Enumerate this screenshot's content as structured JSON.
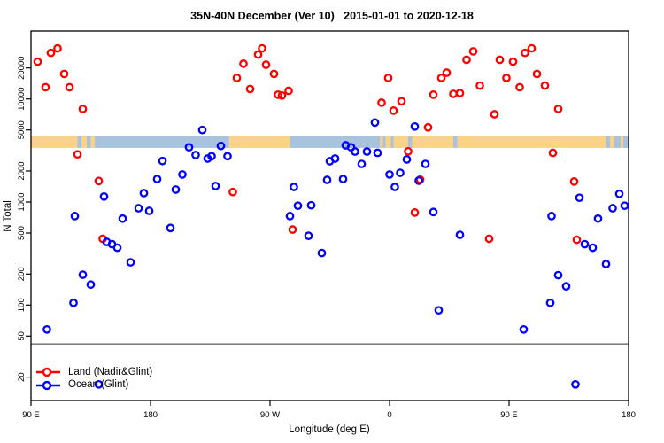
{
  "chart_data": {
    "type": "scatter",
    "title": "35N-40N December (Ver 10)   2015-01-01 to 2020-12-18",
    "xlabel": "Longitude (deg E)",
    "ylabel": "N Total",
    "x_axis": {
      "note": "longitude axis wraps eastward from 90E through 180, 90W, 0, back to 180",
      "range_deg": [
        90,
        540
      ],
      "ticks": [
        {
          "value": 90,
          "label": "90 E"
        },
        {
          "value": 180,
          "label": "180"
        },
        {
          "value": 270,
          "label": "90 W"
        },
        {
          "value": 360,
          "label": "0"
        },
        {
          "value": 450,
          "label": "90 E"
        },
        {
          "value": 540,
          "label": "180"
        }
      ]
    },
    "y_axis": {
      "scale": "log",
      "range": [
        12,
        45000
      ],
      "ticks": [
        20,
        50,
        100,
        200,
        500,
        1000,
        2000,
        5000,
        10000,
        20000
      ]
    },
    "threshold_line_n": 42,
    "map_strip": {
      "n_range": [
        3350,
        4330
      ],
      "land_color": "#fad387",
      "ocean_color": "#a9c3df",
      "segments": [
        [
          90,
          125,
          "land"
        ],
        [
          125,
          128,
          "ocean"
        ],
        [
          128,
          132,
          "land"
        ],
        [
          132,
          135,
          "ocean"
        ],
        [
          135,
          138,
          "land"
        ],
        [
          138,
          239,
          "ocean"
        ],
        [
          239,
          285,
          "land"
        ],
        [
          285,
          353,
          "ocean"
        ],
        [
          353,
          355,
          "land"
        ],
        [
          355,
          357,
          "ocean"
        ],
        [
          357,
          361,
          "land"
        ],
        [
          361,
          363,
          "ocean"
        ],
        [
          363,
          374,
          "land"
        ],
        [
          374,
          377,
          "ocean"
        ],
        [
          377,
          408,
          "land"
        ],
        [
          408,
          411,
          "ocean"
        ],
        [
          411,
          523,
          "land"
        ],
        [
          523,
          526,
          "ocean"
        ],
        [
          526,
          529,
          "land"
        ],
        [
          529,
          534,
          "ocean"
        ],
        [
          534,
          536,
          "land"
        ],
        [
          536,
          540,
          "ocean"
        ]
      ]
    },
    "series": [
      {
        "name": "Land (Nadir&Glint)",
        "color": "#ff0000",
        "points": [
          [
            95,
            23000
          ],
          [
            101,
            13000
          ],
          [
            105,
            28000
          ],
          [
            110,
            31000
          ],
          [
            115,
            17500
          ],
          [
            119,
            13000
          ],
          [
            125,
            2900
          ],
          [
            129,
            8000
          ],
          [
            141,
            1600
          ],
          [
            144,
            440
          ],
          [
            242,
            1250
          ],
          [
            245,
            16000
          ],
          [
            250,
            22000
          ],
          [
            255,
            12500
          ],
          [
            261,
            27000
          ],
          [
            264,
            31000
          ],
          [
            267,
            21500
          ],
          [
            273,
            17500
          ],
          [
            276,
            11000
          ],
          [
            279,
            10800
          ],
          [
            284,
            12000
          ],
          [
            287,
            540
          ],
          [
            354,
            9200
          ],
          [
            359,
            16000
          ],
          [
            363,
            7700
          ],
          [
            369,
            9500
          ],
          [
            374,
            3100
          ],
          [
            379,
            790
          ],
          [
            383,
            1650
          ],
          [
            389,
            5300
          ],
          [
            393,
            11000
          ],
          [
            399,
            16000
          ],
          [
            403,
            18000
          ],
          [
            408,
            11200
          ],
          [
            413,
            11400
          ],
          [
            418,
            24000
          ],
          [
            423,
            29000
          ],
          [
            428,
            13500
          ],
          [
            435,
            440
          ],
          [
            439,
            7100
          ],
          [
            443,
            24000
          ],
          [
            448,
            16000
          ],
          [
            453,
            23000
          ],
          [
            458,
            13000
          ],
          [
            462,
            28000
          ],
          [
            467,
            31000
          ],
          [
            471,
            17500
          ],
          [
            477,
            13500
          ],
          [
            483,
            3000
          ],
          [
            487,
            8000
          ],
          [
            499,
            1580
          ],
          [
            501,
            430
          ]
        ]
      },
      {
        "name": "Ocean (Glint)",
        "color": "#0000ff",
        "points": [
          [
            102,
            58
          ],
          [
            122,
            105
          ],
          [
            123,
            730
          ],
          [
            129,
            197
          ],
          [
            135,
            158
          ],
          [
            141,
            17
          ],
          [
            145,
            1130
          ],
          [
            147,
            410
          ],
          [
            151,
            390
          ],
          [
            155,
            360
          ],
          [
            159,
            690
          ],
          [
            165,
            260
          ],
          [
            171,
            870
          ],
          [
            175,
            1220
          ],
          [
            179,
            820
          ],
          [
            185,
            1670
          ],
          [
            189,
            2500
          ],
          [
            195,
            560
          ],
          [
            199,
            1320
          ],
          [
            204,
            1850
          ],
          [
            209,
            3400
          ],
          [
            214,
            2860
          ],
          [
            219,
            5000
          ],
          [
            223,
            2640
          ],
          [
            226,
            2780
          ],
          [
            229,
            1430
          ],
          [
            233,
            3500
          ],
          [
            238,
            2780
          ],
          [
            285,
            730
          ],
          [
            288,
            1400
          ],
          [
            291,
            920
          ],
          [
            299,
            470
          ],
          [
            301,
            930
          ],
          [
            309,
            320
          ],
          [
            313,
            1640
          ],
          [
            315,
            2490
          ],
          [
            319,
            2640
          ],
          [
            325,
            1670
          ],
          [
            327,
            3550
          ],
          [
            331,
            3400
          ],
          [
            334,
            3090
          ],
          [
            339,
            2340
          ],
          [
            343,
            3090
          ],
          [
            349,
            5900
          ],
          [
            351,
            3000
          ],
          [
            360,
            1850
          ],
          [
            364,
            1400
          ],
          [
            368,
            1920
          ],
          [
            373,
            2590
          ],
          [
            379,
            5400
          ],
          [
            382,
            1610
          ],
          [
            387,
            2340
          ],
          [
            393,
            800
          ],
          [
            397,
            89
          ],
          [
            413,
            480
          ],
          [
            461,
            58
          ],
          [
            481,
            105
          ],
          [
            482,
            730
          ],
          [
            487,
            195
          ],
          [
            493,
            152
          ],
          [
            500,
            17
          ],
          [
            503,
            1100
          ],
          [
            507,
            390
          ],
          [
            513,
            360
          ],
          [
            517,
            690
          ],
          [
            523,
            250
          ],
          [
            528,
            870
          ],
          [
            533,
            1200
          ],
          [
            537,
            920
          ]
        ]
      }
    ],
    "legend": {
      "position": "bottom-left",
      "entries": [
        "Land (Nadir&Glint)",
        "Ocean (Glint)"
      ]
    }
  }
}
